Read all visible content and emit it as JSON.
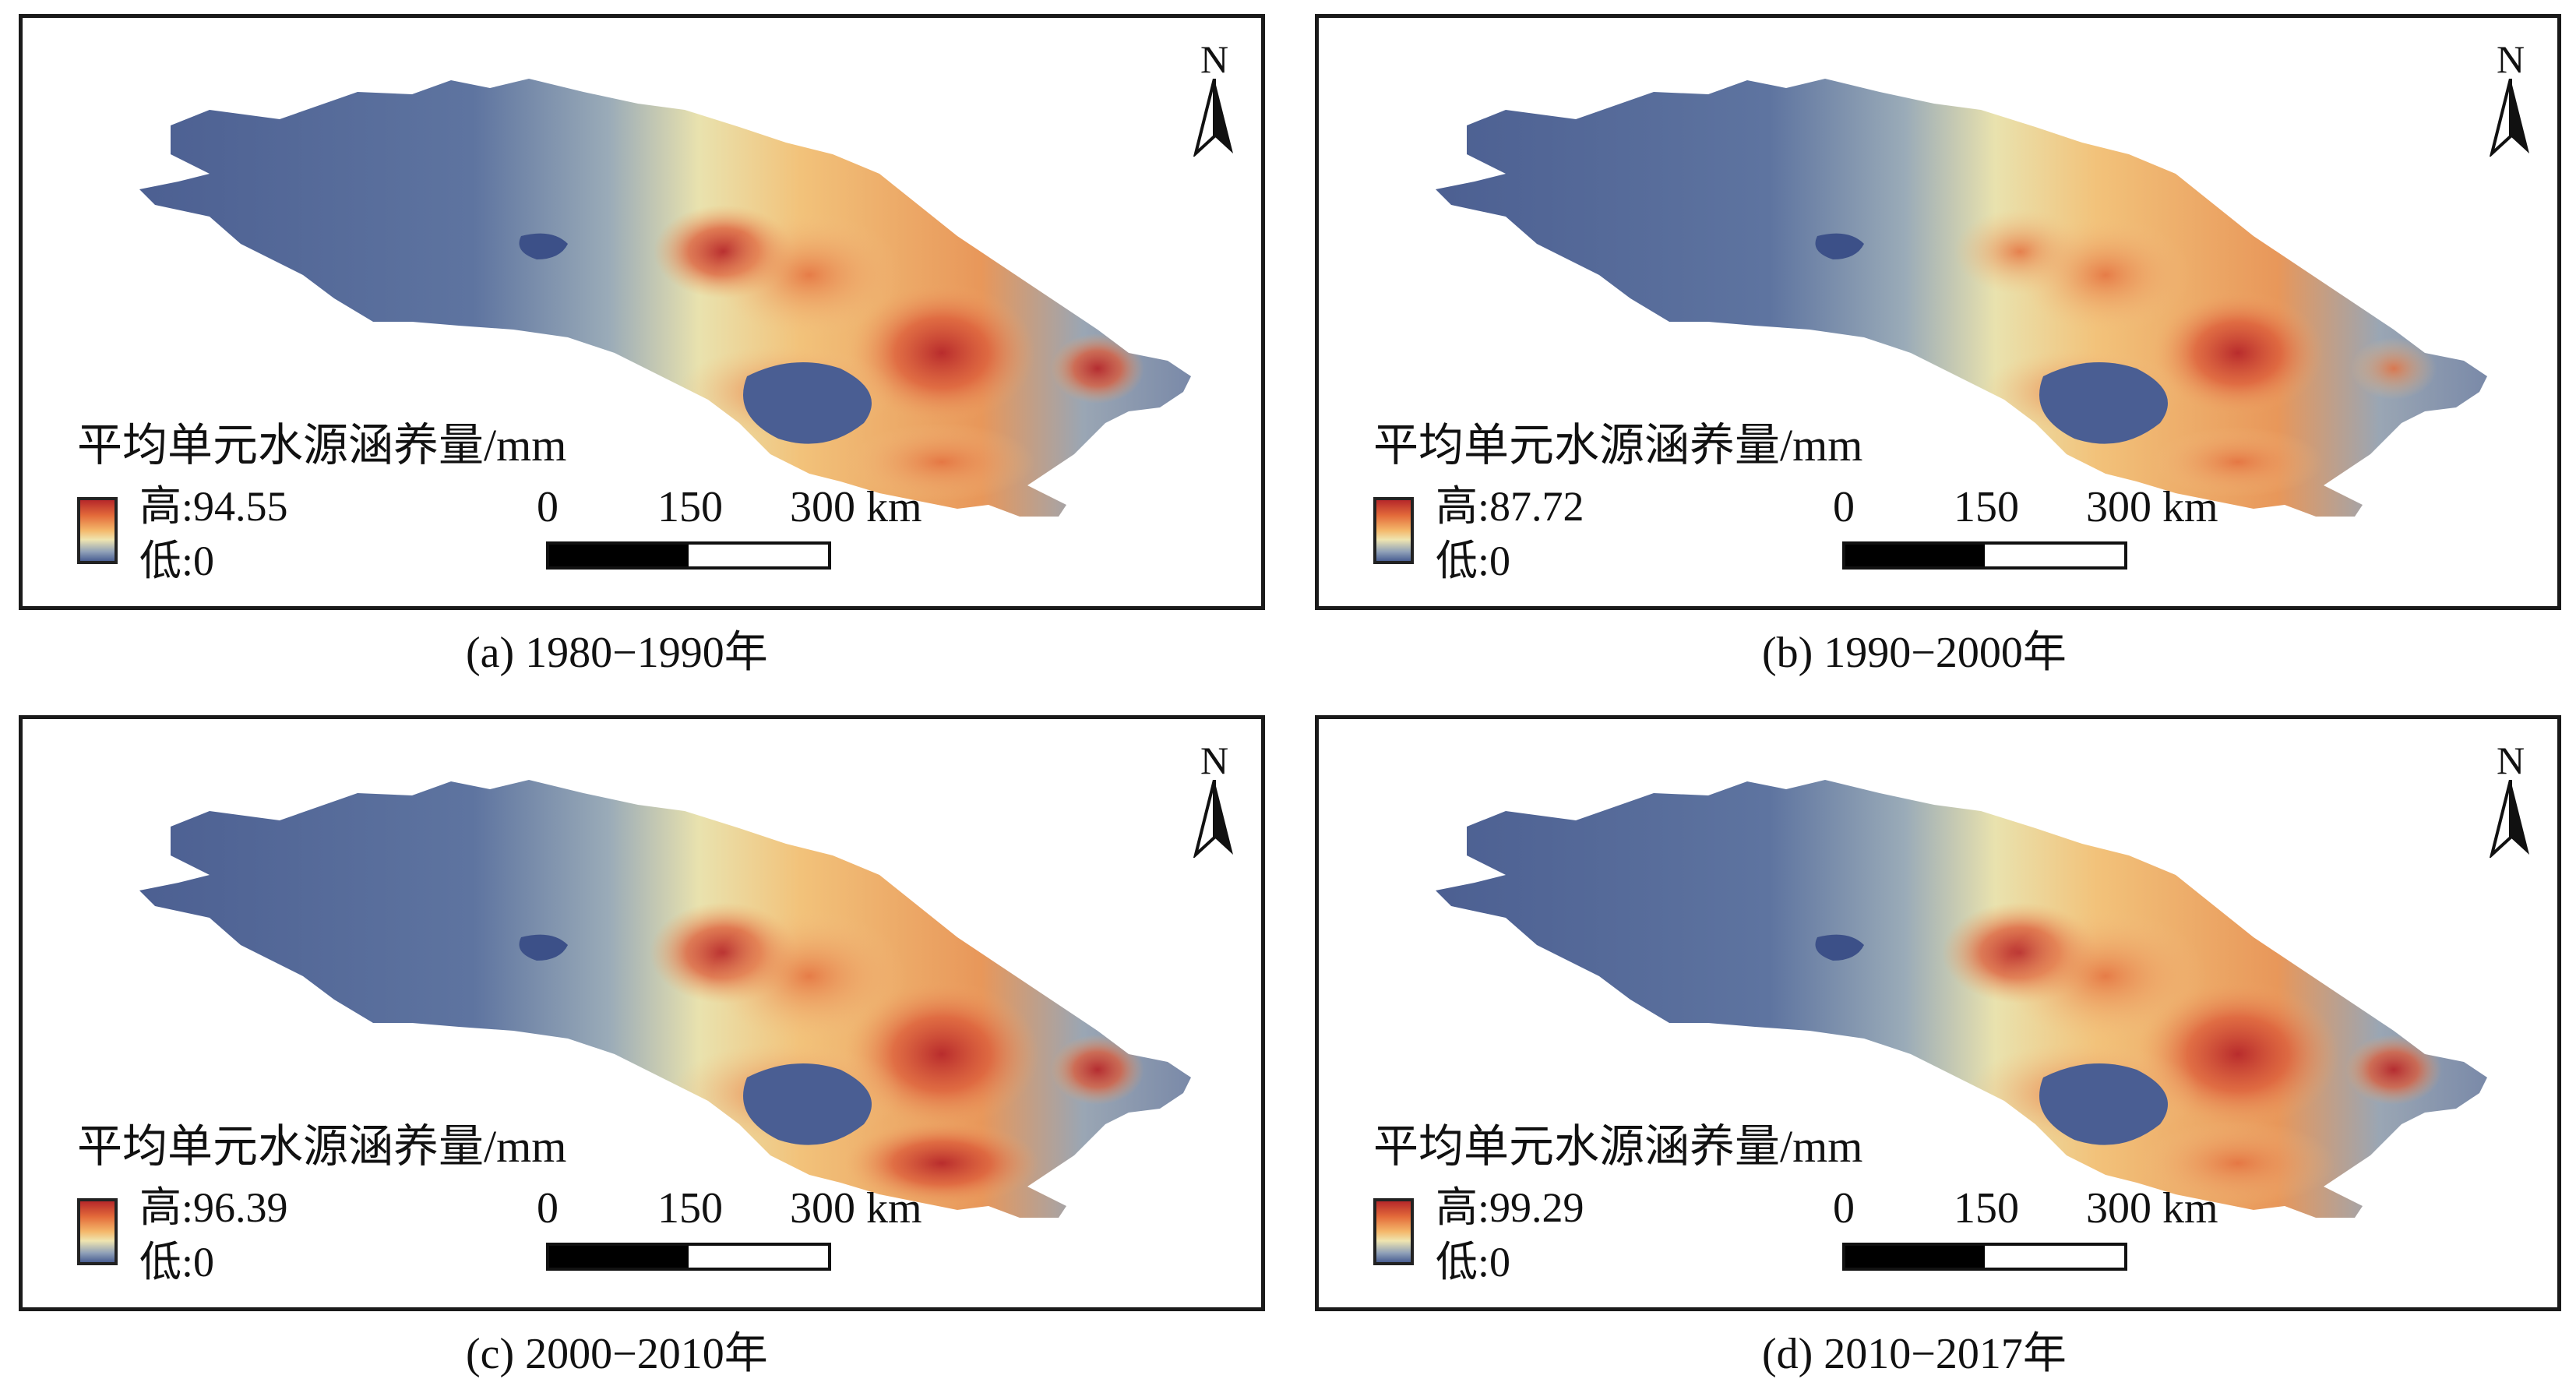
{
  "legend_title": "平均单元水源涵养量/mm",
  "scale": {
    "labels": [
      "0",
      "150",
      "300 km"
    ]
  },
  "north_label": "N",
  "colors": {
    "low": "#4a5f92",
    "mid": "#efe5b0",
    "high": "#b6282a"
  },
  "panels": [
    {
      "caption": "(a) 1980−1990年",
      "high_label": "高:94.55",
      "low_label": "低:0",
      "high_value": 94.55,
      "low_value": 0
    },
    {
      "caption": "(b) 1990−2000年",
      "high_label": "高:87.72",
      "low_label": "低:0",
      "high_value": 87.72,
      "low_value": 0
    },
    {
      "caption": "(c) 2000−2010年",
      "high_label": "高:96.39",
      "low_label": "低:0",
      "high_value": 96.39,
      "low_value": 0
    },
    {
      "caption": "(d) 2010−2017年",
      "high_label": "高:99.29",
      "low_label": "低:0",
      "high_value": 99.29,
      "low_value": 0
    }
  ]
}
